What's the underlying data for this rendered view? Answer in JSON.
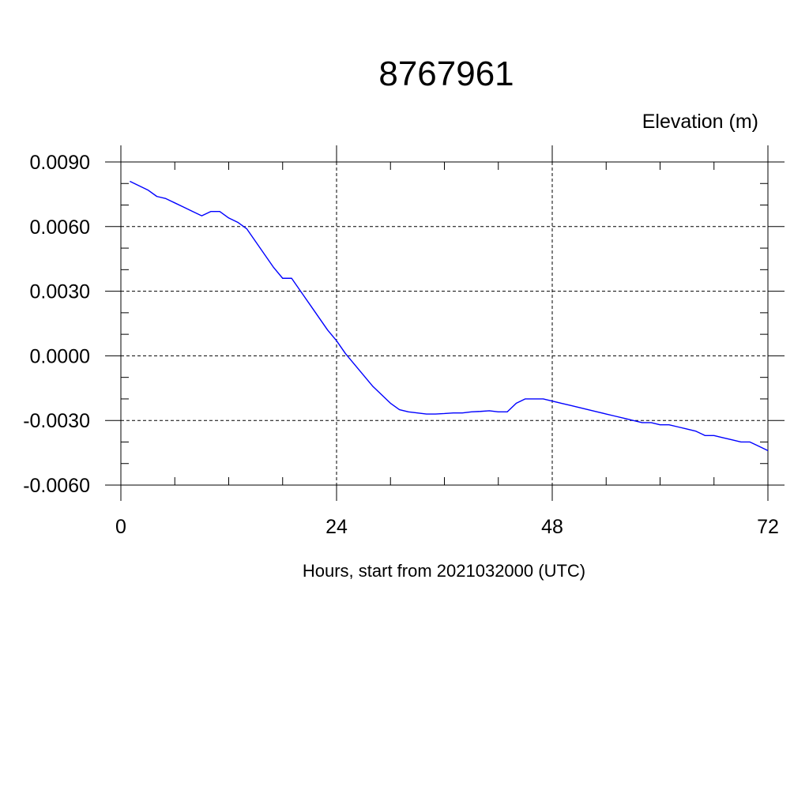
{
  "chart_data": {
    "type": "line",
    "title": "8767961",
    "ylabel": "Elevation (m)",
    "xlabel": "Hours, start from 2021032000 (UTC)",
    "xlim": [
      0,
      72
    ],
    "ylim": [
      -0.006,
      0.009
    ],
    "grid": true,
    "x_ticks": [
      0,
      24,
      48,
      72
    ],
    "x_tick_labels": [
      "0",
      "24",
      "48",
      "72"
    ],
    "y_ticks": [
      0.009,
      0.006,
      0.003,
      0.0,
      -0.003,
      -0.006
    ],
    "y_tick_labels": [
      "0.0090",
      "0.0060",
      "0.0030",
      "0.0000",
      "-0.0030",
      "-0.0060"
    ],
    "line_color": "#0000ff",
    "series": [
      {
        "x": [
          1,
          2,
          3,
          4,
          5,
          6,
          7,
          8,
          9,
          10,
          11,
          12,
          13,
          14,
          15,
          16,
          17,
          18,
          19,
          20,
          21,
          22,
          23,
          24,
          25,
          26,
          27,
          28,
          29,
          30,
          31,
          32,
          33,
          34,
          35,
          36,
          37,
          38,
          39,
          40,
          41,
          42,
          43,
          44,
          45,
          46,
          47,
          48,
          49,
          50,
          51,
          52,
          53,
          54,
          55,
          56,
          57,
          58,
          59,
          60,
          61,
          62,
          63,
          64,
          65,
          66,
          67,
          68,
          69,
          70,
          71,
          72
        ],
        "values": [
          0.0081,
          0.0079,
          0.0077,
          0.0074,
          0.0073,
          0.0071,
          0.0069,
          0.0067,
          0.0065,
          0.0067,
          0.0067,
          0.0064,
          0.0062,
          0.0059,
          0.0053,
          0.0047,
          0.0041,
          0.0036,
          0.0036,
          0.003,
          0.0024,
          0.0018,
          0.0012,
          0.0007,
          0.0001,
          -0.0004,
          -0.0009,
          -0.0014,
          -0.0018,
          -0.0022,
          -0.0025,
          -0.0026,
          -0.00265,
          -0.0027,
          -0.0027,
          -0.00268,
          -0.00265,
          -0.00265,
          -0.0026,
          -0.00258,
          -0.00255,
          -0.0026,
          -0.0026,
          -0.0022,
          -0.002,
          -0.002,
          -0.002,
          -0.0021,
          -0.0022,
          -0.0023,
          -0.0024,
          -0.0025,
          -0.0026,
          -0.0027,
          -0.0028,
          -0.0029,
          -0.003,
          -0.0031,
          -0.0031,
          -0.0032,
          -0.0032,
          -0.0033,
          -0.0034,
          -0.0035,
          -0.0037,
          -0.0037,
          -0.0038,
          -0.0039,
          -0.004,
          -0.004,
          -0.0042,
          -0.0044
        ]
      }
    ]
  }
}
